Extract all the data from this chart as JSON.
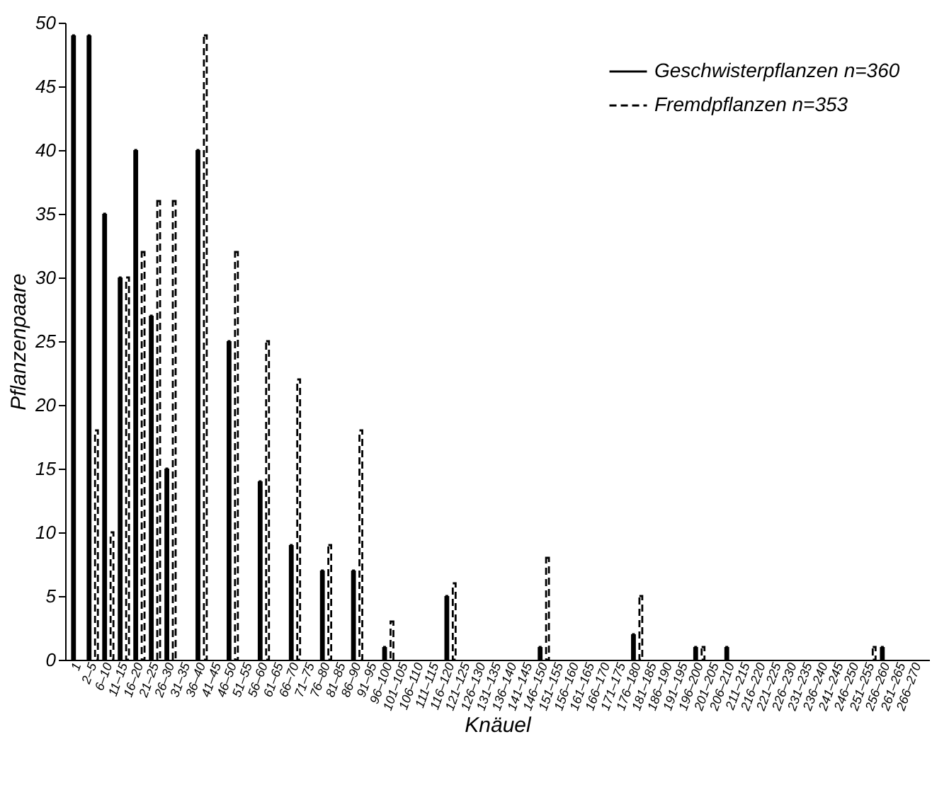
{
  "chart_data": {
    "type": "bar",
    "xlabel": "Knäuel",
    "ylabel": "Pflanzenpaare",
    "categories": [
      "1",
      "2–5",
      "6–10",
      "11–15",
      "16–20",
      "21–25",
      "26–30",
      "31–35",
      "36–40",
      "41–45",
      "46–50",
      "51–55",
      "56–60",
      "61–65",
      "66–70",
      "71–75",
      "76–80",
      "81–85",
      "86–90",
      "91–95",
      "96–100",
      "101–105",
      "106–110",
      "111–115",
      "116–120",
      "121–125",
      "126–130",
      "131–135",
      "136–140",
      "141–145",
      "146–150",
      "151–155",
      "156–160",
      "161–165",
      "166–170",
      "171–175",
      "176–180",
      "181–185",
      "186–190",
      "191–195",
      "196–200",
      "201–205",
      "206–210",
      "211–215",
      "216–220",
      "221–225",
      "226–230",
      "231–235",
      "236–240",
      "241–245",
      "246–250",
      "251–255",
      "256–260",
      "261–265",
      "266–270"
    ],
    "series": [
      {
        "name": "Geschwisterpflanzen n=360",
        "color": "#000000",
        "line_style": "solid",
        "values": [
          49,
          49,
          35,
          30,
          40,
          27,
          15,
          0,
          40,
          0,
          25,
          0,
          14,
          0,
          9,
          0,
          7,
          0,
          7,
          0,
          1,
          0,
          0,
          0,
          5,
          0,
          0,
          0,
          0,
          0,
          1,
          0,
          0,
          0,
          0,
          0,
          2,
          0,
          0,
          0,
          1,
          0,
          1,
          0,
          0,
          0,
          0,
          0,
          0,
          0,
          0,
          0,
          1,
          0,
          0
        ]
      },
      {
        "name": "Fremdpflanzen n=353",
        "color": "#000000",
        "line_style": "dashed",
        "values": [
          0,
          18,
          10,
          30,
          32,
          36,
          36,
          0,
          49,
          0,
          32,
          0,
          25,
          0,
          22,
          0,
          9,
          0,
          18,
          0,
          3,
          0,
          0,
          0,
          6,
          0,
          0,
          0,
          0,
          0,
          8,
          0,
          0,
          0,
          0,
          0,
          5,
          0,
          0,
          0,
          1,
          0,
          0,
          0,
          0,
          0,
          0,
          0,
          0,
          0,
          0,
          1,
          0,
          0,
          0
        ]
      }
    ],
    "ylim": [
      0,
      50
    ],
    "yticks": [
      0,
      5,
      10,
      15,
      20,
      25,
      30,
      35,
      40,
      45,
      50
    ],
    "legend": "top right"
  }
}
